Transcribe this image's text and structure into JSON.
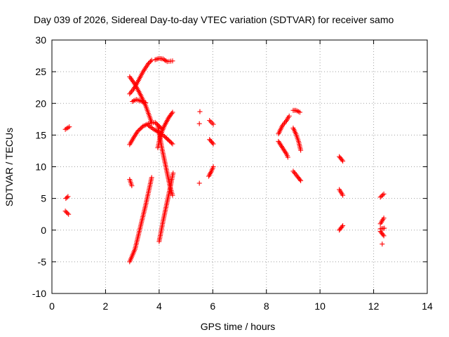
{
  "chart_data": {
    "type": "scatter",
    "title": "Day 039 of 2026, Sidereal Day-to-day VTEC variation (SDTVAR) for receiver samo",
    "xlabel": "GPS time / hours",
    "ylabel": "SDTVAR / TECUs",
    "xlim": [
      0,
      14
    ],
    "ylim": [
      -10,
      30
    ],
    "xticks": [
      0,
      2,
      4,
      6,
      8,
      10,
      12,
      14
    ],
    "yticks": [
      -10,
      -5,
      0,
      5,
      10,
      15,
      20,
      25,
      30
    ],
    "grid": true,
    "marker": "+",
    "color": "#ff0000",
    "segments": [
      {
        "x": [
          0.5,
          0.65
        ],
        "y": [
          15.9,
          16.3
        ]
      },
      {
        "x": [
          0.52,
          0.6
        ],
        "y": [
          5.0,
          5.3
        ]
      },
      {
        "x": [
          0.5,
          0.62
        ],
        "y": [
          3.0,
          2.5
        ]
      },
      {
        "x": [
          2.9,
          3.05,
          3.2,
          3.4,
          3.6,
          3.72
        ],
        "y": [
          21.5,
          22.3,
          23.4,
          25.0,
          26.3,
          26.8
        ]
      },
      {
        "x": [
          2.9,
          3.1,
          3.3,
          3.5,
          3.72
        ],
        "y": [
          24.2,
          23.0,
          21.4,
          19.6,
          17.0
        ]
      },
      {
        "x": [
          2.9,
          3.05,
          3.2,
          3.4,
          3.6,
          3.85,
          4.1
        ],
        "y": [
          13.5,
          14.6,
          15.6,
          16.4,
          16.8,
          17.0,
          16.0
        ]
      },
      {
        "x": [
          3.0,
          3.15,
          3.3,
          3.5
        ],
        "y": [
          20.3,
          20.6,
          20.4,
          20.1
        ]
      },
      {
        "x": [
          3.6,
          3.8,
          4.0,
          4.2,
          4.35,
          4.5
        ],
        "y": [
          16.5,
          15.9,
          15.4,
          14.8,
          14.2,
          13.6
        ]
      },
      {
        "x": [
          2.9,
          2.98
        ],
        "y": [
          8.0,
          7.0
        ]
      },
      {
        "x": [
          2.9,
          3.1,
          3.3,
          3.5,
          3.72
        ],
        "y": [
          -5.0,
          -3.0,
          0.5,
          4.0,
          8.3
        ]
      },
      {
        "x": [
          3.85,
          4.0,
          4.15,
          4.3,
          4.5
        ],
        "y": [
          26.9,
          27.1,
          27.0,
          26.6,
          26.7
        ]
      },
      {
        "x": [
          3.95,
          4.05,
          4.2,
          4.35,
          4.5
        ],
        "y": [
          13.0,
          15.0,
          16.5,
          17.7,
          18.6
        ]
      },
      {
        "x": [
          3.95,
          4.1,
          4.25,
          4.4,
          4.5
        ],
        "y": [
          16.5,
          13.0,
          10.0,
          7.0,
          5.5
        ]
      },
      {
        "x": [
          4.0,
          4.15,
          4.3,
          4.45,
          4.52
        ],
        "y": [
          -1.8,
          1.5,
          4.5,
          7.5,
          9.0
        ]
      },
      {
        "x": [
          5.52
        ],
        "y": [
          18.7
        ]
      },
      {
        "x": [
          5.5
        ],
        "y": [
          16.8
        ]
      },
      {
        "x": [
          5.5
        ],
        "y": [
          7.4
        ]
      },
      {
        "x": [
          5.88,
          6.02
        ],
        "y": [
          17.3,
          16.7
        ]
      },
      {
        "x": [
          5.88,
          6.02
        ],
        "y": [
          14.3,
          13.6
        ]
      },
      {
        "x": [
          5.85,
          5.95,
          6.02
        ],
        "y": [
          8.5,
          9.3,
          10.0
        ]
      },
      {
        "x": [
          8.45,
          8.6,
          8.75,
          8.85
        ],
        "y": [
          15.2,
          16.5,
          17.3,
          18.0
        ]
      },
      {
        "x": [
          8.45,
          8.6,
          8.75,
          8.8
        ],
        "y": [
          14.0,
          13.0,
          12.0,
          11.5
        ]
      },
      {
        "x": [
          9.0,
          9.1,
          9.25
        ],
        "y": [
          18.9,
          18.9,
          18.6
        ]
      },
      {
        "x": [
          9.0,
          9.1,
          9.2,
          9.28
        ],
        "y": [
          16.1,
          15.2,
          14.0,
          12.6
        ]
      },
      {
        "x": [
          9.0,
          9.15,
          9.28
        ],
        "y": [
          9.3,
          8.5,
          7.8
        ]
      },
      {
        "x": [
          10.72,
          10.85
        ],
        "y": [
          11.6,
          10.9
        ]
      },
      {
        "x": [
          10.72,
          10.85
        ],
        "y": [
          6.4,
          5.5
        ]
      },
      {
        "x": [
          10.72,
          10.85
        ],
        "y": [
          0.0,
          0.7
        ]
      },
      {
        "x": [
          12.25,
          12.38
        ],
        "y": [
          5.2,
          5.7
        ]
      },
      {
        "x": [
          12.25,
          12.38
        ],
        "y": [
          1.0,
          1.9
        ]
      },
      {
        "x": [
          12.25,
          12.4
        ],
        "y": [
          0.2,
          0.3
        ]
      },
      {
        "x": [
          12.25,
          12.38
        ],
        "y": [
          -0.2,
          -0.9
        ]
      },
      {
        "x": [
          12.32
        ],
        "y": [
          -2.2
        ]
      }
    ]
  }
}
